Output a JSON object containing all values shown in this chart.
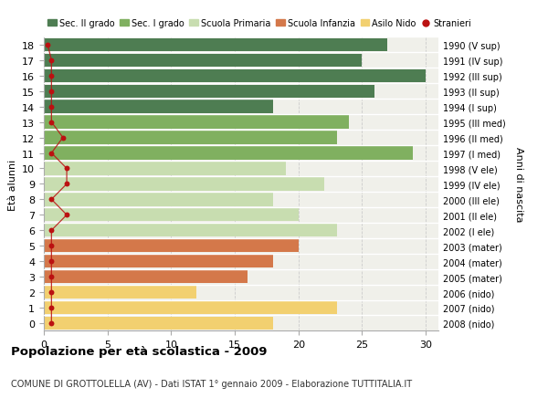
{
  "ages": [
    18,
    17,
    16,
    15,
    14,
    13,
    12,
    11,
    10,
    9,
    8,
    7,
    6,
    5,
    4,
    3,
    2,
    1,
    0
  ],
  "years": [
    "1990 (V sup)",
    "1991 (IV sup)",
    "1992 (III sup)",
    "1993 (II sup)",
    "1994 (I sup)",
    "1995 (III med)",
    "1996 (II med)",
    "1997 (I med)",
    "1998 (V ele)",
    "1999 (IV ele)",
    "2000 (III ele)",
    "2001 (II ele)",
    "2002 (I ele)",
    "2003 (mater)",
    "2004 (mater)",
    "2005 (mater)",
    "2006 (nido)",
    "2007 (nido)",
    "2008 (nido)"
  ],
  "bar_values": [
    27,
    25,
    30,
    26,
    18,
    24,
    23,
    29,
    19,
    22,
    18,
    20,
    23,
    20,
    18,
    16,
    12,
    23,
    18
  ],
  "bar_colors": [
    "#4e7d52",
    "#4e7d52",
    "#4e7d52",
    "#4e7d52",
    "#4e7d52",
    "#80b060",
    "#80b060",
    "#80b060",
    "#c8ddb0",
    "#c8ddb0",
    "#c8ddb0",
    "#c8ddb0",
    "#c8ddb0",
    "#d4784a",
    "#d4784a",
    "#d4784a",
    "#f2d070",
    "#f2d070",
    "#f2d070"
  ],
  "stranieri_x": [
    0.3,
    0.6,
    0.6,
    0.6,
    0.6,
    0.6,
    1.5,
    0.6,
    1.8,
    1.8,
    0.6,
    1.8,
    0.6,
    0.6,
    0.6,
    0.6,
    0.6,
    0.6,
    0.6
  ],
  "color_sec2": "#4e7d52",
  "color_sec1": "#80b060",
  "color_primaria": "#c8ddb0",
  "color_infanzia": "#d4784a",
  "color_nido": "#f2d070",
  "color_stranieri": "#bb1111",
  "title": "Popolazione per età scolastica - 2009",
  "subtitle": "COMUNE DI GROTTOLELLA (AV) - Dati ISTAT 1° gennaio 2009 - Elaborazione TUTTITALIA.IT",
  "ylabel": "Età alunni",
  "ylabel_right": "Anni di nascita",
  "xlim": [
    0,
    31
  ],
  "bg_color": "#f0f0ea",
  "grid_color": "#ffffff",
  "legend_labels": [
    "Sec. II grado",
    "Sec. I grado",
    "Scuola Primaria",
    "Scuola Infanzia",
    "Asilo Nido",
    "Stranieri"
  ]
}
